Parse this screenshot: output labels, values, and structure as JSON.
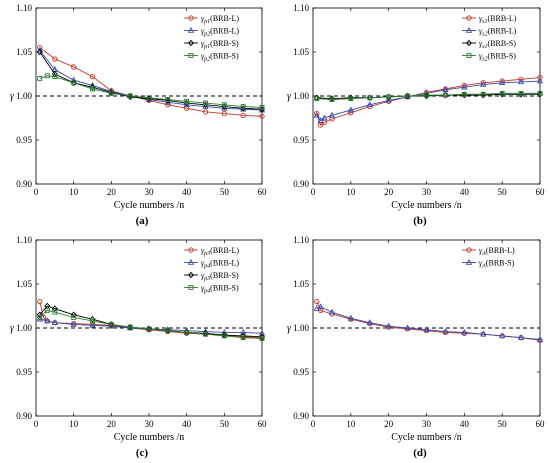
{
  "figure": {
    "panel_letters": [
      "(a)",
      "(b)",
      "(c)",
      "(d)"
    ]
  },
  "chart_data": [
    {
      "type": "line",
      "panel": "(a)",
      "xlabel": "Cycle numbers /n",
      "ylabel": "γ",
      "xlim": [
        0,
        60
      ],
      "ylim": [
        0.9,
        1.1
      ],
      "xticks": [
        "0",
        "10",
        "20",
        "30",
        "40",
        "50",
        "60"
      ],
      "yticks": [
        "0.90",
        "0.95",
        "1.00",
        "1.05",
        "1.10"
      ],
      "reference_line": 1.0,
      "legend_position": "top-right",
      "series": [
        {
          "name": "γp1(BRB-L)",
          "sym": "γ",
          "sub": "p1",
          "tail": "(BRB-L)",
          "color": "#c0392b",
          "marker": "circle",
          "x": [
            1,
            5,
            10,
            15,
            20,
            25,
            30,
            35,
            40,
            45,
            50,
            55,
            60
          ],
          "values": [
            1.055,
            1.042,
            1.033,
            1.022,
            1.006,
            1.0,
            0.995,
            0.99,
            0.986,
            0.982,
            0.98,
            0.978,
            0.977
          ]
        },
        {
          "name": "γp2(BRB-L)",
          "sym": "γ",
          "sub": "p2",
          "tail": "(BRB-L)",
          "color": "#3949ab",
          "marker": "triangle",
          "x": [
            1,
            5,
            10,
            15,
            20,
            25,
            30,
            35,
            40,
            45,
            50,
            55,
            60
          ],
          "values": [
            1.052,
            1.03,
            1.018,
            1.012,
            1.005,
            1.0,
            0.996,
            0.993,
            0.99,
            0.988,
            0.986,
            0.985,
            0.984
          ]
        },
        {
          "name": "γp1(BRB-S)",
          "sym": "γ",
          "sub": "p1",
          "tail": "(BRB-S)",
          "color": "#000000",
          "marker": "diamond",
          "x": [
            1,
            5,
            10,
            15,
            20,
            25,
            30,
            35,
            40,
            45,
            50,
            55,
            60
          ],
          "values": [
            1.05,
            1.025,
            1.015,
            1.01,
            1.004,
            0.999,
            0.997,
            0.995,
            0.992,
            0.99,
            0.988,
            0.986,
            0.985
          ]
        },
        {
          "name": "γp2(BRB-S)",
          "sym": "γ",
          "sub": "p2",
          "tail": "(BRB-S)",
          "color": "#2e7d32",
          "marker": "square",
          "x": [
            1,
            3,
            5,
            10,
            15,
            20,
            25,
            30,
            35,
            40,
            45,
            50,
            55,
            60
          ],
          "values": [
            1.02,
            1.023,
            1.022,
            1.015,
            1.008,
            1.003,
            1.0,
            0.998,
            0.996,
            0.994,
            0.992,
            0.99,
            0.988,
            0.987
          ]
        }
      ]
    },
    {
      "type": "line",
      "panel": "(b)",
      "xlabel": "Cycle numbers /n",
      "ylabel": "γ",
      "xlim": [
        0,
        60
      ],
      "ylim": [
        0.9,
        1.1
      ],
      "xticks": [
        "0",
        "10",
        "20",
        "30",
        "40",
        "50",
        "60"
      ],
      "yticks": [
        "0.90",
        "0.95",
        "1.00",
        "1.05",
        "1.10"
      ],
      "reference_line": 1.0,
      "legend_position": "top-right",
      "series": [
        {
          "name": "γs1(BRB-L)",
          "sym": "γ",
          "sub": "s1",
          "tail": "(BRB-L)",
          "color": "#c0392b",
          "marker": "circle",
          "x": [
            1,
            2,
            3,
            5,
            10,
            15,
            20,
            25,
            30,
            35,
            40,
            45,
            50,
            55,
            60
          ],
          "values": [
            0.98,
            0.967,
            0.97,
            0.974,
            0.981,
            0.988,
            0.994,
            0.999,
            1.004,
            1.008,
            1.012,
            1.015,
            1.017,
            1.019,
            1.021
          ]
        },
        {
          "name": "γs2(BRB-L)",
          "sym": "γ",
          "sub": "s2",
          "tail": "(BRB-L)",
          "color": "#3949ab",
          "marker": "triangle",
          "x": [
            1,
            2,
            3,
            5,
            10,
            15,
            20,
            25,
            30,
            35,
            40,
            45,
            50,
            55,
            60
          ],
          "values": [
            0.978,
            0.972,
            0.975,
            0.978,
            0.984,
            0.99,
            0.995,
            0.999,
            1.003,
            1.007,
            1.01,
            1.013,
            1.015,
            1.016,
            1.017
          ]
        },
        {
          "name": "γs1(BRB-S)",
          "sym": "γ",
          "sub": "s1",
          "tail": "(BRB-S)",
          "color": "#000000",
          "marker": "diamond",
          "x": [
            1,
            5,
            10,
            15,
            20,
            25,
            30,
            35,
            40,
            45,
            50,
            55,
            60
          ],
          "values": [
            0.998,
            0.997,
            0.998,
            0.998,
            0.999,
            1.0,
            1.0,
            1.001,
            1.001,
            1.001,
            1.002,
            1.002,
            1.002
          ]
        },
        {
          "name": "γs2(BRB-S)",
          "sym": "γ",
          "sub": "s2",
          "tail": "(BRB-S)",
          "color": "#2e7d32",
          "marker": "square",
          "x": [
            1,
            5,
            10,
            15,
            20,
            25,
            30,
            35,
            40,
            45,
            50,
            55,
            60
          ],
          "values": [
            0.997,
            0.996,
            0.997,
            0.998,
            0.999,
            1.0,
            1.001,
            1.001,
            1.002,
            1.002,
            1.003,
            1.003,
            1.003
          ]
        }
      ]
    },
    {
      "type": "line",
      "panel": "(c)",
      "xlabel": "Cycle numbers /n",
      "ylabel": "γ",
      "xlim": [
        0,
        60
      ],
      "ylim": [
        0.9,
        1.1
      ],
      "xticks": [
        "0",
        "10",
        "20",
        "30",
        "40",
        "50",
        "60"
      ],
      "yticks": [
        "0.90",
        "0.95",
        "1.00",
        "1.05",
        "1.10"
      ],
      "reference_line": 1.0,
      "legend_position": "top-right",
      "series": [
        {
          "name": "γp3(BRB-L)",
          "sym": "γ",
          "sub": "p3",
          "tail": "(BRB-L)",
          "color": "#c0392b",
          "marker": "circle",
          "x": [
            1,
            2,
            3,
            5,
            10,
            15,
            20,
            25,
            30,
            35,
            40,
            45,
            50,
            55,
            60
          ],
          "values": [
            1.03,
            1.012,
            1.008,
            1.006,
            1.005,
            1.004,
            1.003,
            1.0,
            0.998,
            0.996,
            0.994,
            0.993,
            0.992,
            0.99,
            0.989
          ]
        },
        {
          "name": "γp4(BRB-L)",
          "sym": "γ",
          "sub": "p4",
          "tail": "(BRB-L)",
          "color": "#3949ab",
          "marker": "triangle",
          "x": [
            1,
            3,
            5,
            10,
            15,
            20,
            25,
            30,
            35,
            40,
            45,
            50,
            55,
            60
          ],
          "values": [
            1.01,
            1.008,
            1.006,
            1.004,
            1.003,
            1.002,
            1.0,
            0.999,
            0.998,
            0.997,
            0.996,
            0.995,
            0.995,
            0.994
          ]
        },
        {
          "name": "γp3(BRB-S)",
          "sym": "γ",
          "sub": "p3",
          "tail": "(BRB-S)",
          "color": "#000000",
          "marker": "diamond",
          "x": [
            1,
            3,
            5,
            10,
            15,
            20,
            25,
            30,
            35,
            40,
            45,
            50,
            55,
            60
          ],
          "values": [
            1.015,
            1.025,
            1.022,
            1.015,
            1.01,
            1.004,
            1.001,
            0.999,
            0.997,
            0.995,
            0.994,
            0.992,
            0.991,
            0.99
          ]
        },
        {
          "name": "γp4(BRB-S)",
          "sym": "γ",
          "sub": "p4",
          "tail": "(BRB-S)",
          "color": "#2e7d32",
          "marker": "square",
          "x": [
            1,
            3,
            5,
            10,
            15,
            20,
            25,
            30,
            35,
            40,
            45,
            50,
            55,
            60
          ],
          "values": [
            1.012,
            1.02,
            1.018,
            1.012,
            1.008,
            1.004,
            1.001,
            0.999,
            0.997,
            0.995,
            0.993,
            0.991,
            0.989,
            0.988
          ]
        }
      ]
    },
    {
      "type": "line",
      "panel": "(d)",
      "xlabel": "Cycle numbers /n",
      "ylabel": "γ",
      "xlim": [
        0,
        60
      ],
      "ylim": [
        0.9,
        1.1
      ],
      "xticks": [
        "0",
        "10",
        "20",
        "30",
        "40",
        "50",
        "60"
      ],
      "yticks": [
        "0.90",
        "0.95",
        "1.00",
        "1.05",
        "1.10"
      ],
      "reference_line": 1.0,
      "legend_position": "top-right",
      "series": [
        {
          "name": "γA(BRB-L)",
          "sym": "γ",
          "sub": "A",
          "tail": "(BRB-L)",
          "color": "#c0392b",
          "marker": "circle",
          "x": [
            1,
            2,
            5,
            10,
            15,
            20,
            25,
            30,
            35,
            40,
            45,
            50,
            55,
            60
          ],
          "values": [
            1.03,
            1.02,
            1.016,
            1.01,
            1.005,
            1.001,
            0.999,
            0.997,
            0.995,
            0.994,
            0.993,
            0.991,
            0.989,
            0.986
          ]
        },
        {
          "name": "γA(BRB-S)",
          "sym": "γ",
          "sub": "A",
          "tail": "(BRB-S)",
          "color": "#3949ab",
          "marker": "triangle",
          "x": [
            1,
            2,
            5,
            10,
            15,
            20,
            25,
            30,
            35,
            40,
            45,
            50,
            55,
            60
          ],
          "values": [
            1.022,
            1.024,
            1.018,
            1.011,
            1.006,
            1.002,
            1.0,
            0.998,
            0.996,
            0.995,
            0.993,
            0.991,
            0.989,
            0.987
          ]
        }
      ]
    }
  ]
}
